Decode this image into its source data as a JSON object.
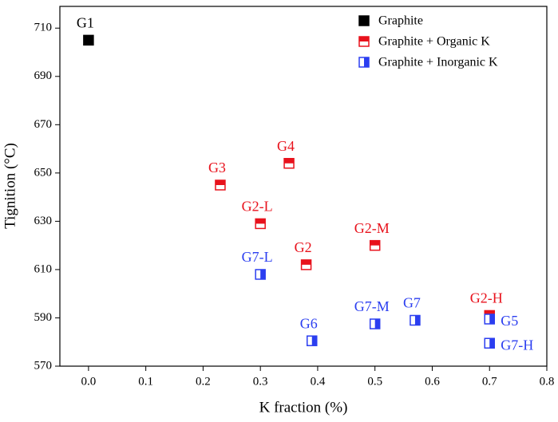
{
  "chart_data": {
    "type": "scatter",
    "x_label": "K fraction (%)",
    "y_label": "Tignition (°C)",
    "xlim": [
      -0.05,
      0.8
    ],
    "ylim": [
      570,
      719
    ],
    "xticks": [
      {
        "value": 0,
        "label": "0.0"
      },
      0.1,
      0.2,
      0.3,
      0.4,
      0.5,
      0.6,
      0.7,
      0.8
    ],
    "yticks": [
      570,
      590,
      610,
      630,
      650,
      670,
      690,
      710
    ],
    "legend": "top-right",
    "series": [
      {
        "name": "Graphite",
        "color": "#000000",
        "marker": "square-filled",
        "x": [
          0.0
        ],
        "values": [
          705
        ],
        "labels": [
          "G1"
        ]
      },
      {
        "name": "Graphite + Organic K",
        "color": "#e8121c",
        "marker": "square-half-top",
        "x": [
          0.23,
          0.35,
          0.3,
          0.38,
          0.5,
          0.7
        ],
        "values": [
          645,
          654,
          629,
          612,
          620,
          591
        ],
        "labels": [
          "G3",
          "G4",
          "G2-L",
          "G2",
          "G2-M",
          "G2-H"
        ]
      },
      {
        "name": "Graphite + Inorganic K",
        "color": "#2b3ef0",
        "marker": "square-half-right",
        "x": [
          0.3,
          0.39,
          0.5,
          0.57,
          0.7,
          0.7
        ],
        "values": [
          608,
          580.5,
          587.5,
          589,
          589.5,
          579.5
        ],
        "labels": [
          "G7-L",
          "G6",
          "G7-M",
          "G7",
          "G5",
          "G7-H"
        ]
      }
    ]
  }
}
